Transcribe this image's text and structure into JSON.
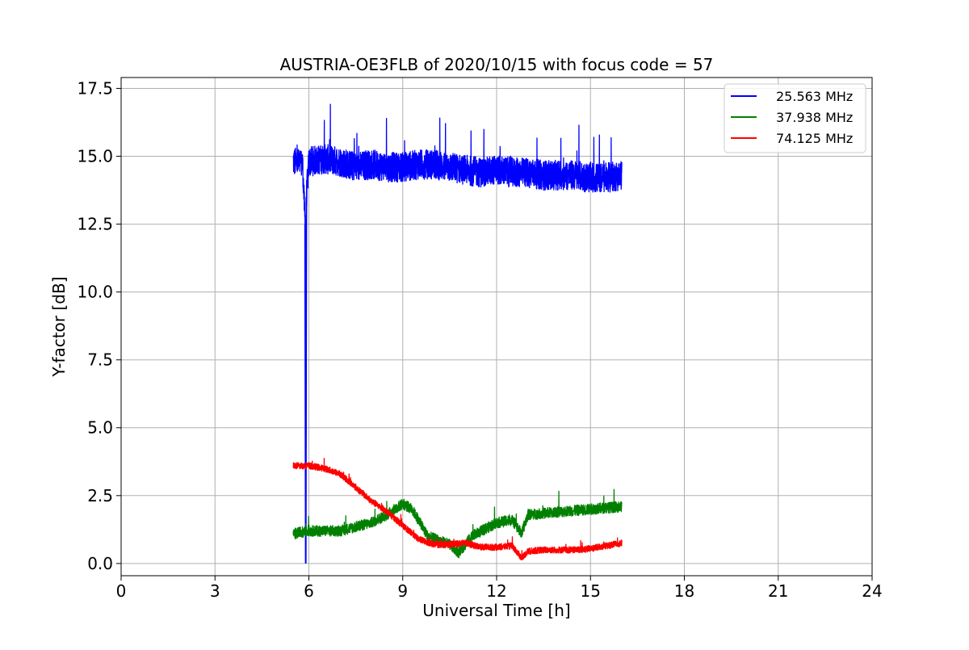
{
  "chart_data": {
    "type": "line",
    "title": "AUSTRIA-OE3FLB of 2020/10/15 with focus code = 57",
    "xlabel": "Universal Time [h]",
    "ylabel": "Y-factor [dB]",
    "xlim": [
      0,
      24
    ],
    "ylim": [
      -0.45,
      17.9
    ],
    "xticks": [
      0,
      3,
      6,
      9,
      12,
      15,
      18,
      21,
      24
    ],
    "xtick_labels": [
      "0",
      "3",
      "6",
      "9",
      "12",
      "15",
      "18",
      "21",
      "24"
    ],
    "yticks": [
      0,
      2.5,
      5,
      7.5,
      10,
      12.5,
      15,
      17.5
    ],
    "ytick_labels": [
      "0.0",
      "2.5",
      "5.0",
      "7.5",
      "10.0",
      "12.5",
      "15.0",
      "17.5"
    ],
    "grid": true,
    "legend_position": "top-right",
    "series": [
      {
        "name": "25.563 MHz",
        "color": "#0000ff",
        "noise": 0.55,
        "x": [
          5.5,
          5.8,
          5.88,
          5.9,
          5.92,
          6.0,
          6.5,
          7.0,
          7.5,
          8.0,
          8.5,
          9.0,
          9.5,
          10.0,
          10.5,
          11.0,
          11.5,
          12.0,
          12.5,
          13.0,
          13.5,
          14.0,
          14.5,
          15.0,
          15.5,
          16.0
        ],
        "y": [
          14.8,
          14.7,
          12.5,
          0.0,
          13.5,
          14.8,
          14.9,
          14.8,
          14.6,
          14.7,
          14.6,
          14.6,
          14.7,
          14.7,
          14.6,
          14.5,
          14.4,
          14.5,
          14.4,
          14.4,
          14.3,
          14.3,
          14.3,
          14.2,
          14.2,
          14.3
        ]
      },
      {
        "name": "37.938 MHz",
        "color": "#008000",
        "noise": 0.2,
        "x": [
          5.5,
          6.0,
          7.0,
          8.0,
          8.5,
          9.0,
          9.3,
          9.8,
          10.5,
          10.8,
          11.2,
          12.0,
          12.5,
          12.8,
          13.0,
          14.0,
          15.0,
          16.0
        ],
        "y": [
          1.1,
          1.2,
          1.2,
          1.5,
          1.8,
          2.2,
          2.0,
          1.0,
          0.7,
          0.4,
          1.0,
          1.5,
          1.6,
          1.1,
          1.8,
          1.9,
          2.0,
          2.1
        ]
      },
      {
        "name": "74.125 MHz",
        "color": "#ff0000",
        "noise": 0.12,
        "x": [
          5.5,
          6.0,
          6.5,
          7.0,
          7.5,
          8.0,
          8.5,
          9.0,
          9.5,
          10.0,
          10.5,
          11.0,
          11.5,
          12.0,
          12.5,
          12.8,
          13.0,
          13.5,
          14.0,
          14.5,
          15.0,
          15.5,
          16.0
        ],
        "y": [
          3.6,
          3.6,
          3.5,
          3.3,
          2.8,
          2.3,
          1.9,
          1.4,
          0.9,
          0.7,
          0.7,
          0.75,
          0.6,
          0.6,
          0.65,
          0.2,
          0.45,
          0.5,
          0.5,
          0.5,
          0.55,
          0.65,
          0.75
        ]
      }
    ]
  }
}
